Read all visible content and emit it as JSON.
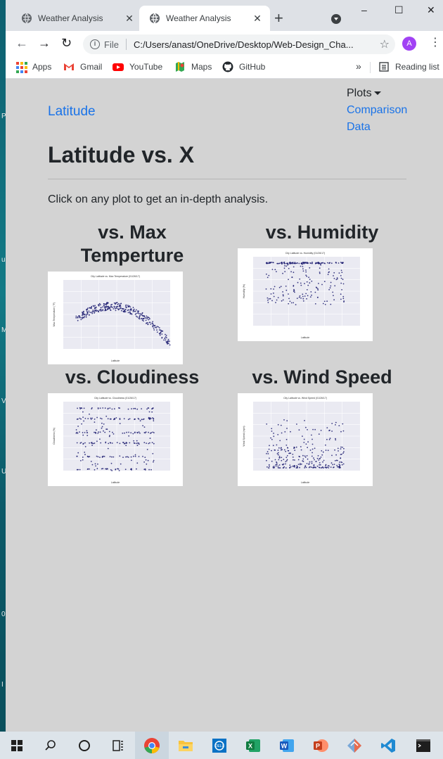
{
  "browser": {
    "tabs": [
      {
        "title": "Weather Analysis",
        "close": "✕"
      },
      {
        "title": "Weather Analysis",
        "close": "✕"
      }
    ],
    "new_tab": "+",
    "window_controls": {
      "minimize": "–",
      "maximize": "☐",
      "close": "✕"
    },
    "address": {
      "scheme_label": "File",
      "url": "C:/Users/anast/OneDrive/Desktop/Web-Design_Cha..."
    },
    "avatar_letter": "A",
    "bookmarks": [
      {
        "label": "Apps",
        "icon": "apps-grid-icon"
      },
      {
        "label": "Gmail",
        "icon": "gmail-icon"
      },
      {
        "label": "YouTube",
        "icon": "youtube-icon"
      },
      {
        "label": "Maps",
        "icon": "maps-icon"
      },
      {
        "label": "GitHub",
        "icon": "github-icon"
      }
    ],
    "bookmarks_more": "»",
    "reading_list": "Reading list"
  },
  "page": {
    "brand": "Latitude",
    "nav": {
      "dropdown": "Plots",
      "links": [
        "Comparison",
        "Data"
      ]
    },
    "title": "Latitude vs. X",
    "lead": "Click on any plot to get an in-depth analysis.",
    "plots": [
      {
        "heading_line1": "vs. Max",
        "heading_line2": "Temperture",
        "thumb_title": "City Latitude vs. Max Temperature (01/26/17)",
        "ylabel": "Max Temperature (°F)",
        "xlabel": "Latitude"
      },
      {
        "heading_line1": "vs. Humidity",
        "thumb_title": "City Latitude vs. Humidity (01/26/17)",
        "ylabel": "Humidity (%)",
        "xlabel": "Latitude"
      },
      {
        "heading_line1": "vs. Cloudiness",
        "thumb_title": "City Latitude vs. Cloudiness (01/26/17)",
        "ylabel": "Cloudiness (%)",
        "xlabel": "Latitude"
      },
      {
        "heading_line1": "vs. Wind Speed",
        "thumb_title": "City Latitude vs. Wind Speed (01/26/17)",
        "ylabel": "Wind Speed (mph)",
        "xlabel": "Latitude"
      }
    ]
  },
  "desktop_letters": [
    "P",
    "u",
    "M",
    "V",
    "U",
    "0",
    "I"
  ],
  "taskbar": [
    "windows-start-icon",
    "search-icon",
    "task-view-icon",
    "widgets-icon",
    "chrome-icon",
    "file-explorer-icon",
    "dell-icon",
    "excel-icon",
    "word-icon",
    "powerpoint-icon",
    "git-icon",
    "vscode-icon",
    "terminal-icon"
  ],
  "colors": {
    "link": "#1a73e8",
    "page_bg": "#d3d3d3",
    "marker": "#1a1a6e"
  }
}
